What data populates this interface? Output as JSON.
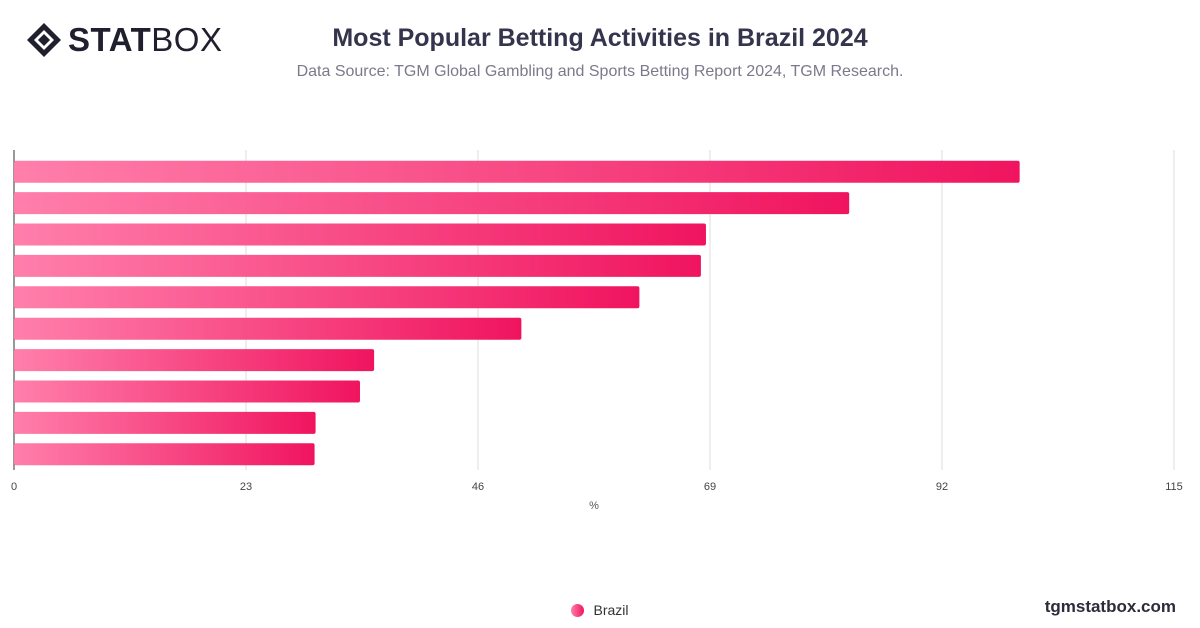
{
  "brand": {
    "logo_bold": "STAT",
    "logo_light": "BOX",
    "site": "tgmstatbox.com"
  },
  "chart_data": {
    "type": "bar",
    "orientation": "horizontal",
    "title": "Most Popular Betting Activities in Brazil 2024",
    "subtitle": "Data Source: TGM Global Gambling and Sports Betting Report 2024, TGM Research.",
    "xlabel": "%",
    "xlim": [
      0,
      115
    ],
    "xticks": [
      0,
      23,
      46,
      69,
      92,
      115
    ],
    "grid": true,
    "legend_position": "bottom-center",
    "series": [
      {
        "name": "Brazil",
        "values": [
          99.7,
          82.8,
          68.6,
          68.1,
          62.0,
          50.3,
          35.7,
          34.3,
          29.9,
          29.8
        ]
      }
    ],
    "colors": {
      "bar_start": "#ff7fab",
      "bar_end": "#f0145f",
      "grid": "#dcdcdc"
    }
  }
}
